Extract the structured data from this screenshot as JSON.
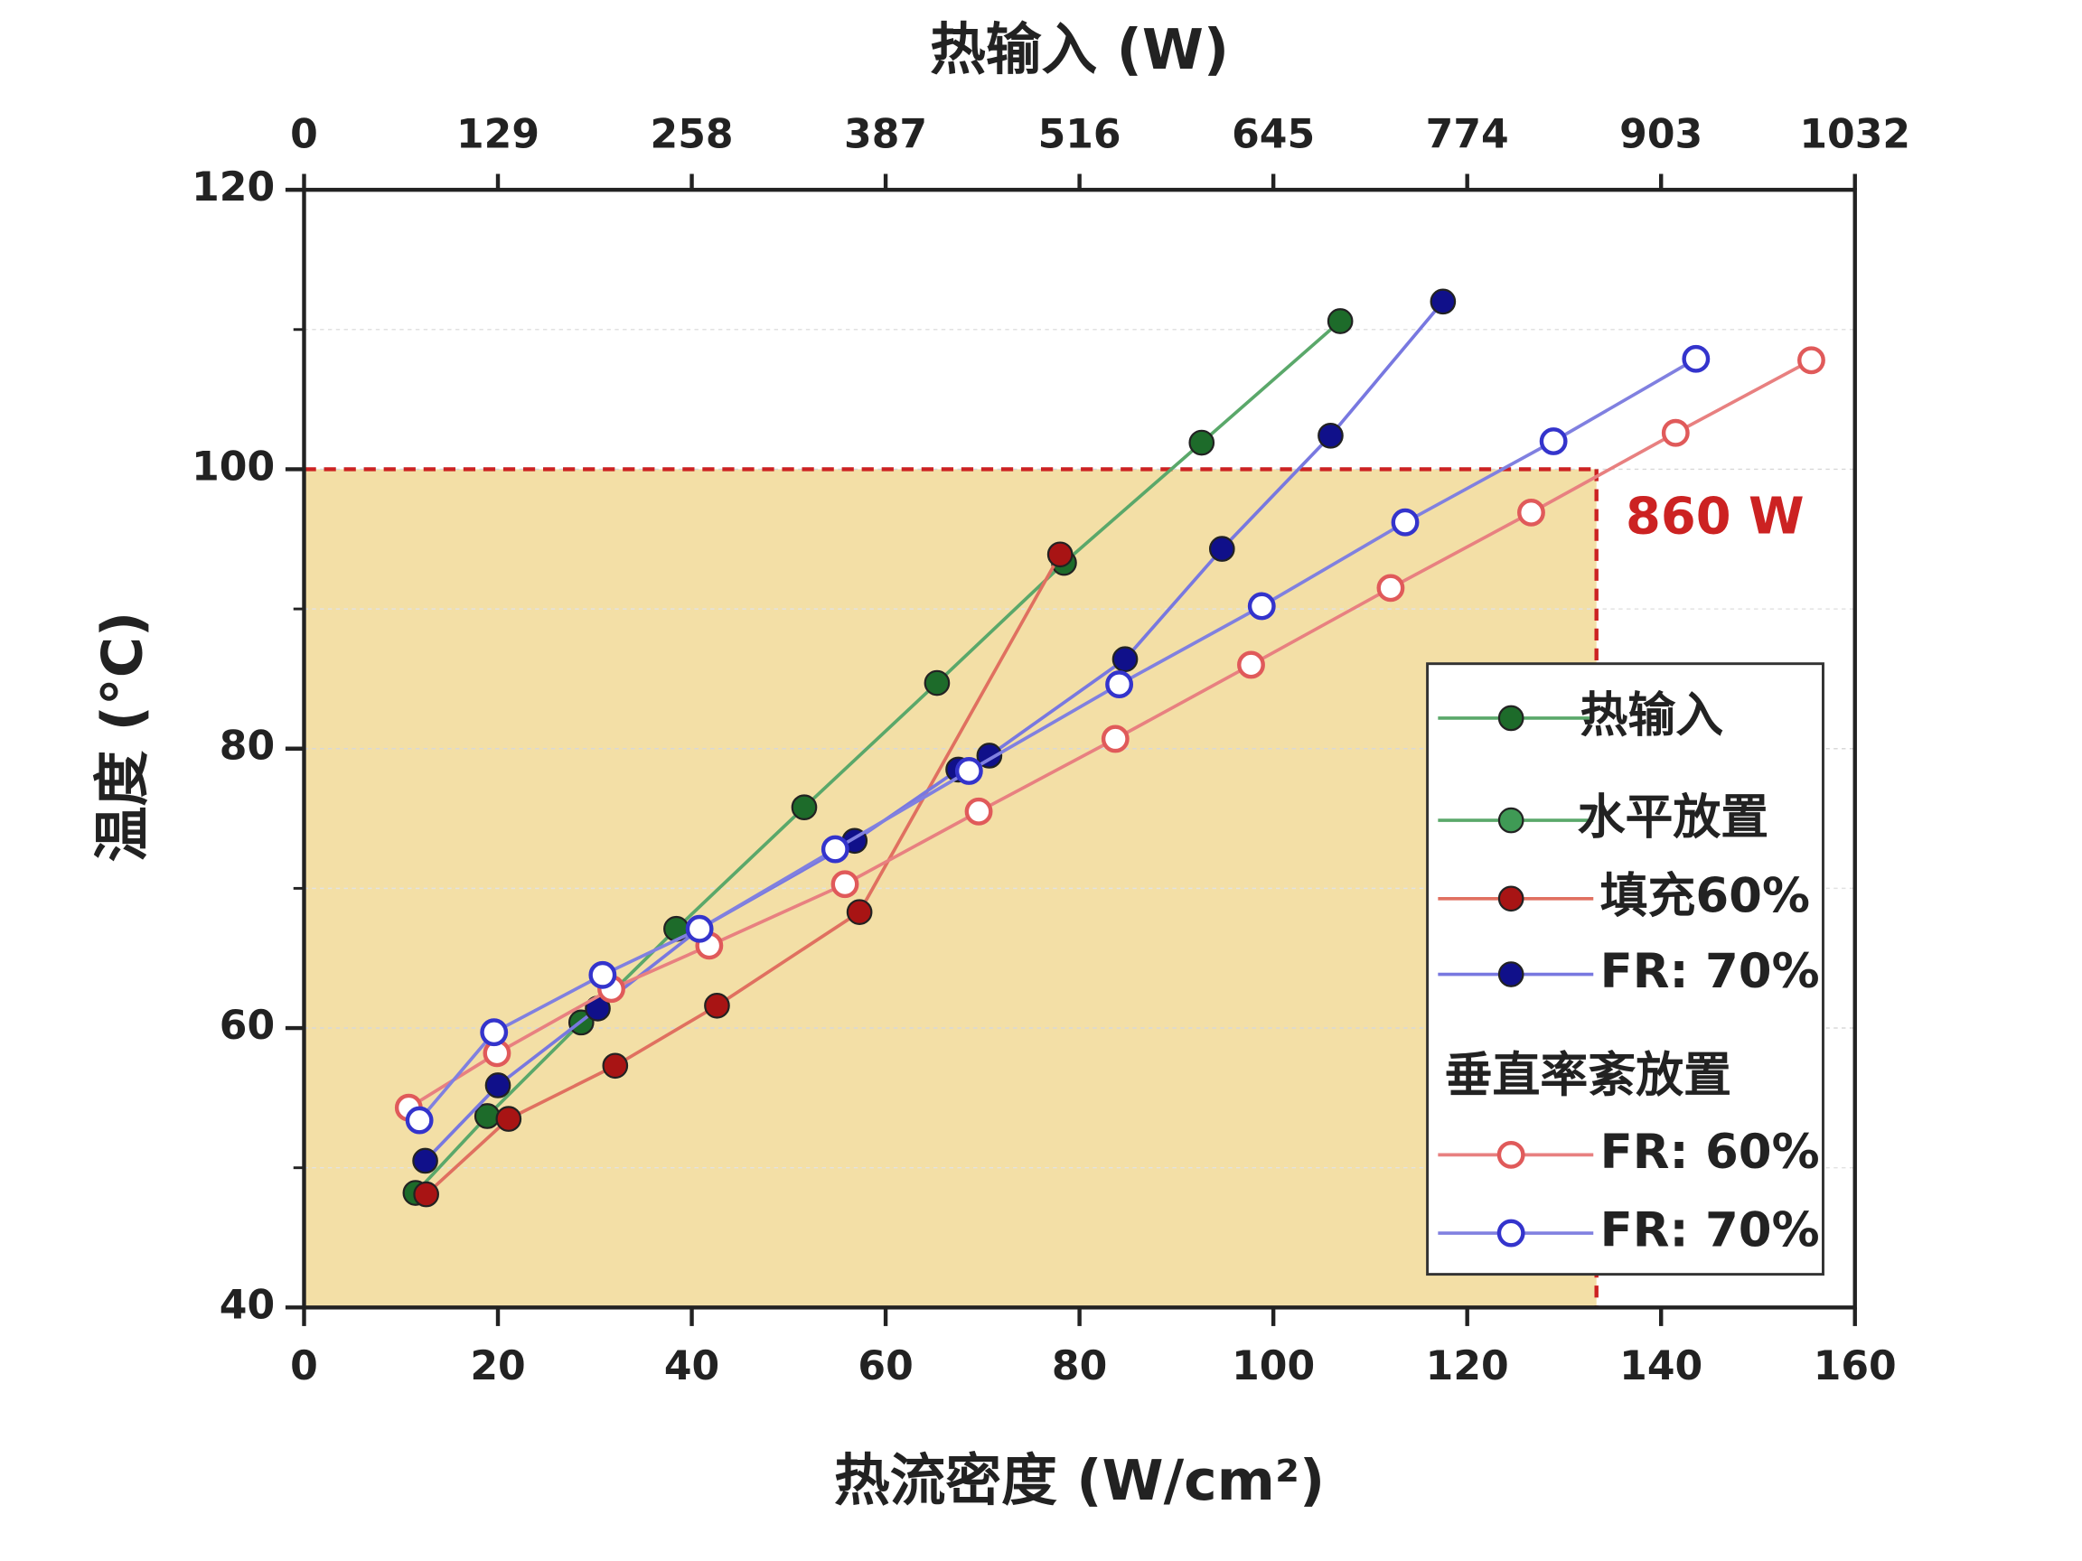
{
  "chart_data": {
    "type": "line",
    "x_label": "热流密度 (W/cm²)",
    "x2_label": "热输入 (W)",
    "y_label": "温度 (°C)",
    "xlim": [
      0,
      160
    ],
    "xticks": [
      0,
      20,
      40,
      60,
      80,
      100,
      120,
      140,
      160
    ],
    "x2lim": [
      0,
      1032
    ],
    "x2ticks": [
      0,
      129,
      258,
      387,
      516,
      645,
      774,
      903,
      1032
    ],
    "ylim": [
      40,
      120
    ],
    "yticks": [
      40,
      60,
      80,
      100,
      120
    ],
    "yminor": [
      50,
      70,
      90,
      110
    ],
    "grid": true,
    "region": {
      "x2": 860,
      "y": 100,
      "label": "860 W",
      "color": "#f3dfa6",
      "line_color": "#cc2222"
    },
    "legend_group_labels": [
      "水平放置",
      "垂直率紊放置"
    ],
    "series": [
      {
        "name": "热输入",
        "color": "#1d6b2a",
        "line_color": "#5aa86a",
        "hollow": false,
        "x": [
          11.5,
          18.9,
          28.6,
          38.4,
          51.6,
          65.3,
          78.4,
          92.6,
          106.9
        ],
        "values": [
          48.2,
          53.7,
          60.4,
          67.1,
          75.8,
          84.7,
          93.3,
          101.9,
          110.6
        ]
      },
      {
        "name": "填充60%",
        "color": "#a81414",
        "line_color": "#e07060",
        "hollow": false,
        "x": [
          12.6,
          21.1,
          32.1,
          42.6,
          57.3,
          78.0
        ],
        "values": [
          48.1,
          53.5,
          57.3,
          61.6,
          68.3,
          93.9
        ]
      },
      {
        "name": "FR: 70%",
        "color": "#10108a",
        "line_color": "#7878e0",
        "hollow": false,
        "x": [
          12.5,
          20.0,
          30.3,
          40.8,
          56.8,
          67.5,
          70.7,
          84.7,
          94.7,
          105.9,
          117.5
        ],
        "values": [
          50.5,
          55.9,
          61.4,
          67.1,
          73.4,
          78.5,
          79.5,
          86.4,
          94.3,
          102.4,
          112.0
        ]
      },
      {
        "name": "FR: 60%",
        "color": "#e05a5a",
        "line_color": "#e88080",
        "hollow": true,
        "x": [
          10.8,
          19.9,
          31.7,
          41.8,
          55.8,
          69.6,
          83.7,
          97.7,
          112.1,
          126.6,
          141.5,
          155.5
        ],
        "values": [
          54.3,
          58.2,
          62.8,
          65.9,
          70.3,
          75.5,
          80.7,
          86.0,
          91.5,
          96.9,
          102.6,
          107.8
        ]
      },
      {
        "name": "FR: 70%",
        "color": "#3434cc",
        "line_color": "#8080e0",
        "hollow": true,
        "x": [
          11.9,
          19.6,
          30.8,
          40.8,
          54.8,
          68.6,
          84.1,
          98.8,
          113.6,
          128.9,
          143.6
        ],
        "values": [
          53.4,
          59.7,
          63.8,
          67.1,
          72.8,
          78.4,
          84.6,
          90.2,
          96.2,
          102.0,
          107.9
        ]
      }
    ]
  }
}
